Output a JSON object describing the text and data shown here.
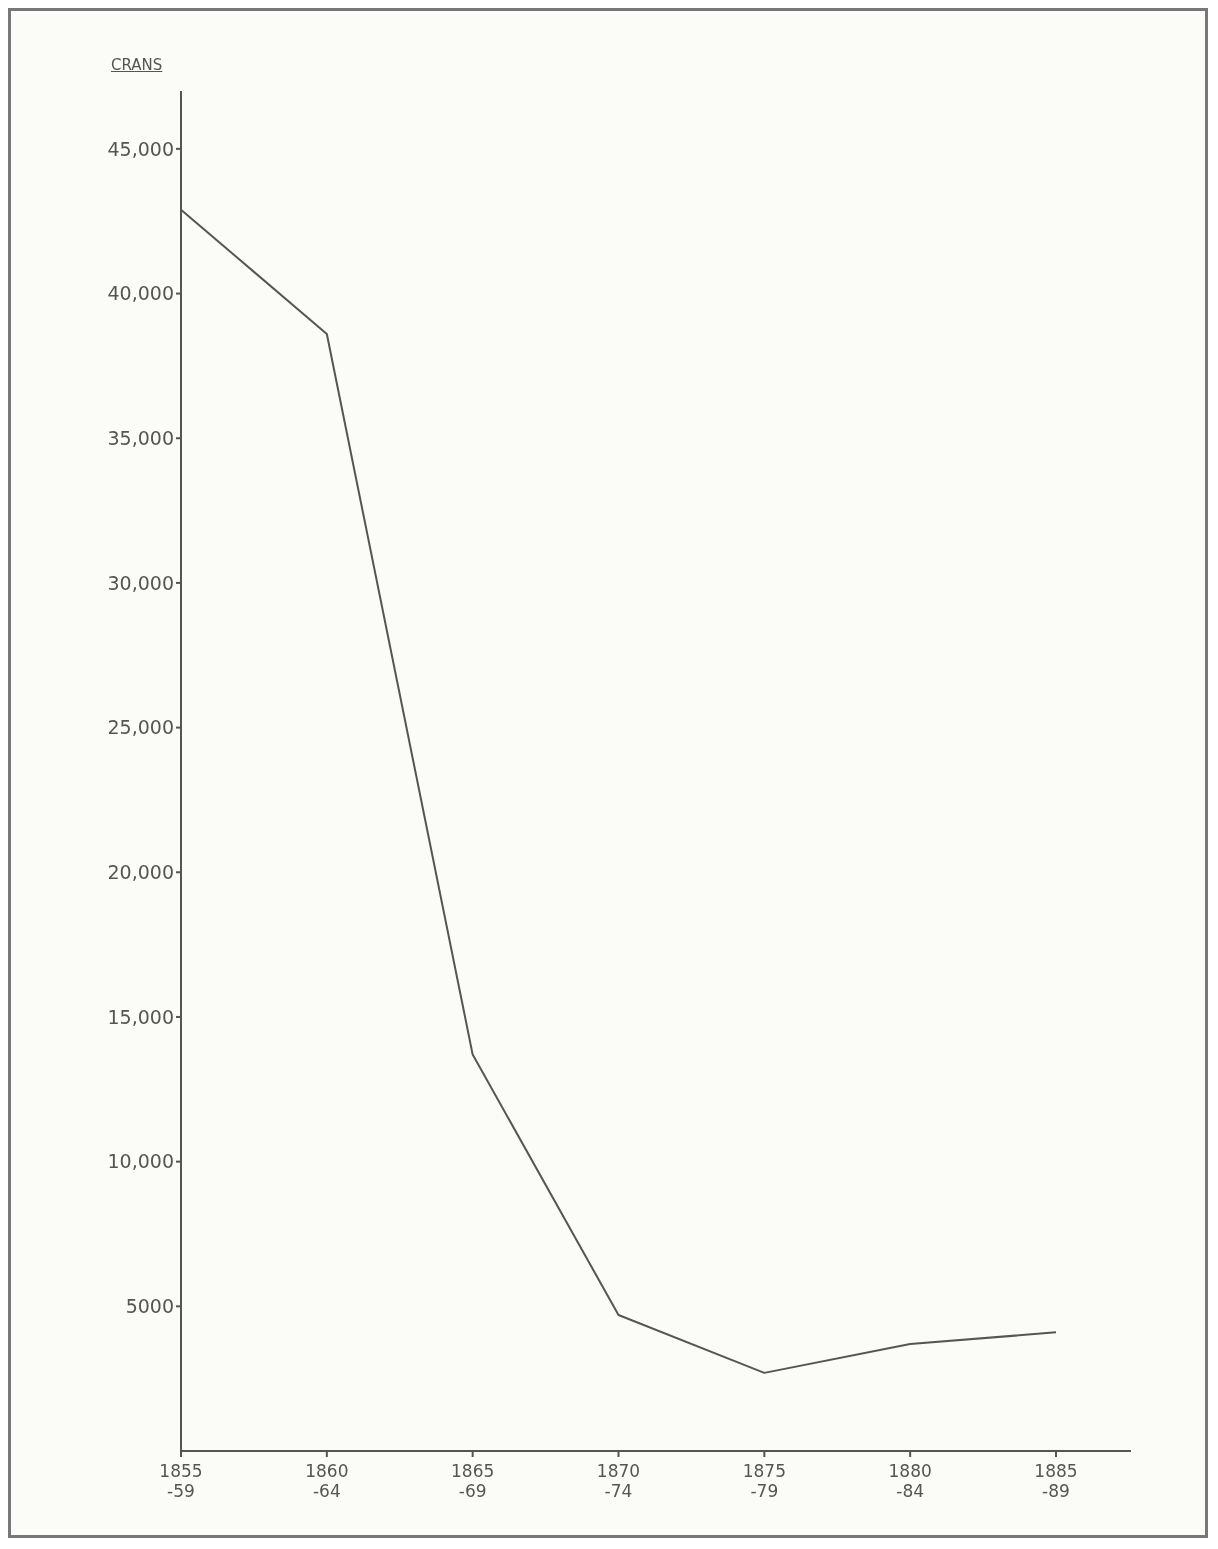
{
  "chart_data": {
    "type": "line",
    "ylabel": "CRANS",
    "categories": [
      "1855\n-59",
      "1860\n-64",
      "1865\n-69",
      "1870\n-74",
      "1875\n-79",
      "1880\n-84",
      "1885\n-89"
    ],
    "values": [
      42900,
      38600,
      13700,
      4700,
      2700,
      3700,
      4100
    ],
    "color": "#555555",
    "ylim": [
      0,
      47000
    ],
    "yticks": [
      {
        "value": 5000,
        "label": "5000"
      },
      {
        "value": 10000,
        "label": "10,000"
      },
      {
        "value": 15000,
        "label": "15,000"
      },
      {
        "value": 20000,
        "label": "20,000"
      },
      {
        "value": 25000,
        "label": "25,000"
      },
      {
        "value": 30000,
        "label": "30,000"
      },
      {
        "value": 35000,
        "label": "35,000"
      },
      {
        "value": 40000,
        "label": "40,000"
      },
      {
        "value": 45000,
        "label": "45,000"
      }
    ],
    "grid": false,
    "legend": false,
    "marker": "none",
    "line_style": "solid"
  }
}
